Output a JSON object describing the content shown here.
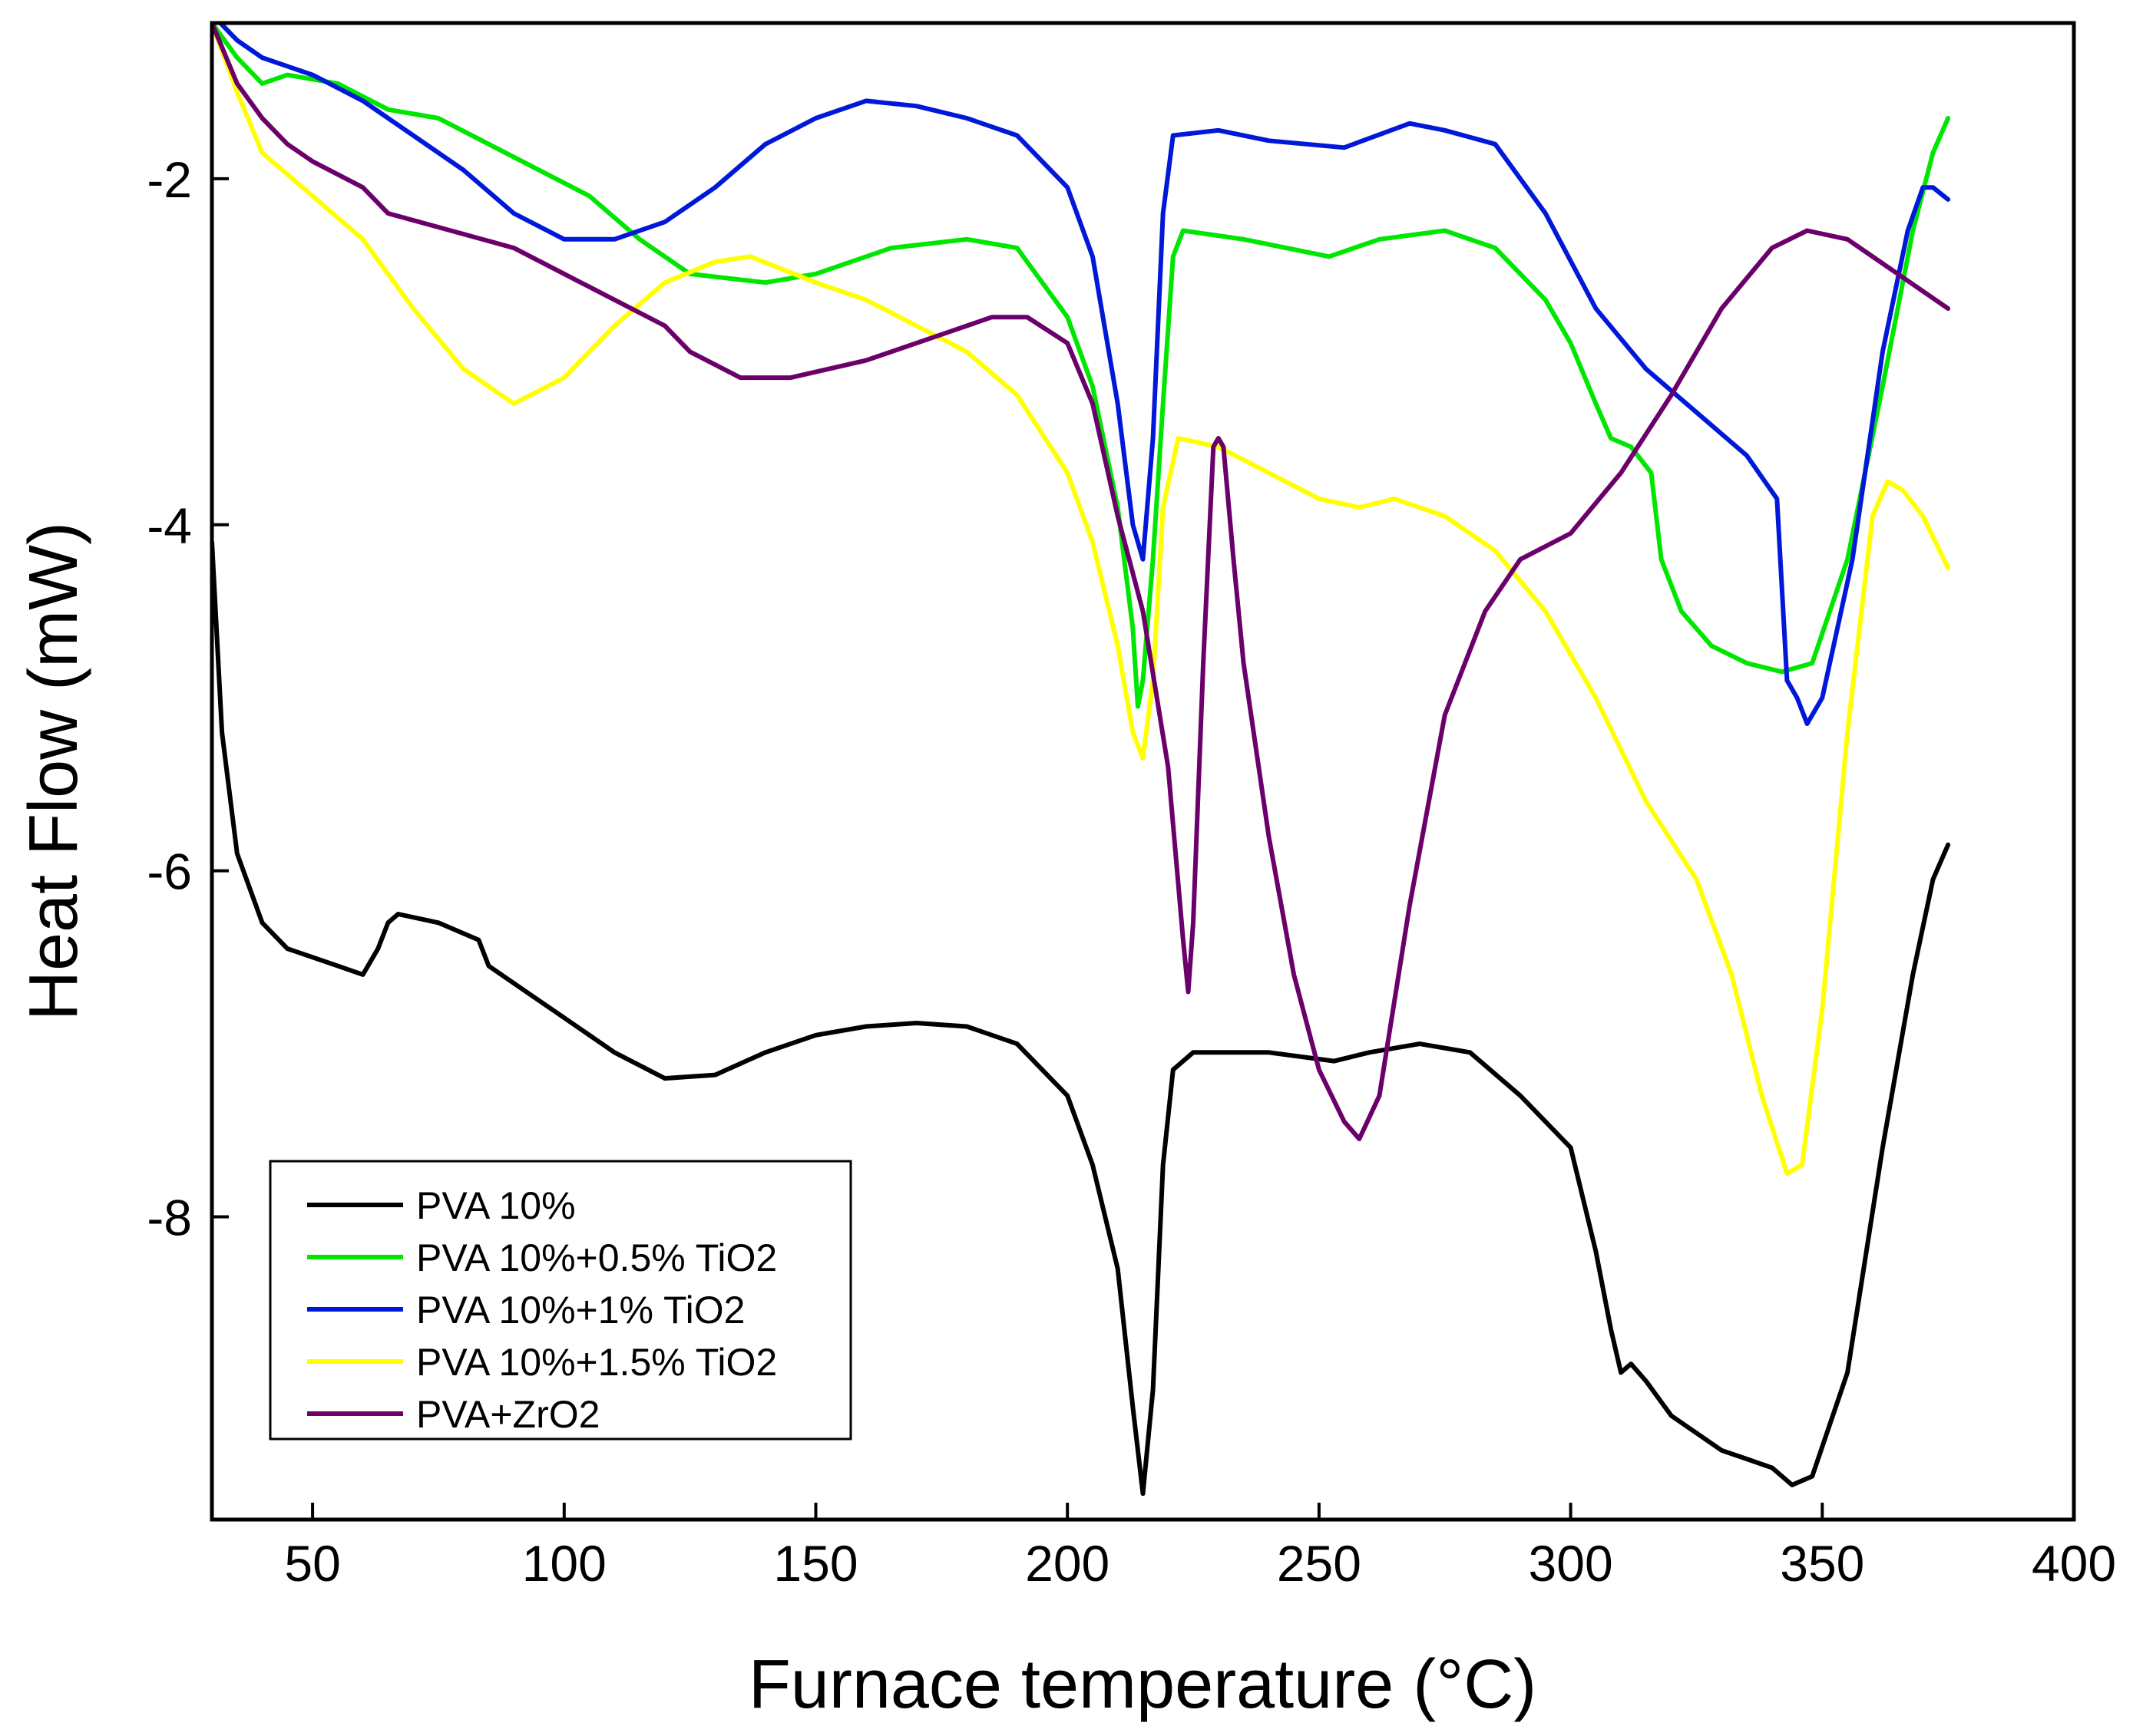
{
  "chart_data": {
    "type": "line",
    "title": "",
    "xlabel": "Furnace temperature (°C)",
    "ylabel": "Heat Flow (mW)",
    "xlim": [
      30,
      400
    ],
    "ylim": [
      -9.75,
      -1.1
    ],
    "xticks": [
      50,
      100,
      150,
      200,
      250,
      300,
      350,
      400
    ],
    "yticks": [
      -2,
      -4,
      -6,
      -8
    ],
    "grid": false,
    "legend_position": "bottom-left",
    "series": [
      {
        "name": "PVA 10%",
        "color": "#000000",
        "points": [
          [
            30,
            -4.1
          ],
          [
            32,
            -5.2
          ],
          [
            35,
            -5.9
          ],
          [
            40,
            -6.3
          ],
          [
            45,
            -6.45
          ],
          [
            50,
            -6.5
          ],
          [
            55,
            -6.55
          ],
          [
            60,
            -6.6
          ],
          [
            63,
            -6.45
          ],
          [
            65,
            -6.3
          ],
          [
            67,
            -6.25
          ],
          [
            75,
            -6.3
          ],
          [
            83,
            -6.4
          ],
          [
            85,
            -6.55
          ],
          [
            90,
            -6.65
          ],
          [
            100,
            -6.85
          ],
          [
            110,
            -7.05
          ],
          [
            120,
            -7.2
          ],
          [
            130,
            -7.18
          ],
          [
            140,
            -7.05
          ],
          [
            150,
            -6.95
          ],
          [
            160,
            -6.9
          ],
          [
            170,
            -6.88
          ],
          [
            180,
            -6.9
          ],
          [
            190,
            -7.0
          ],
          [
            200,
            -7.3
          ],
          [
            205,
            -7.7
          ],
          [
            210,
            -8.3
          ],
          [
            213,
            -9.1
          ],
          [
            215,
            -9.6
          ],
          [
            217,
            -9.0
          ],
          [
            219,
            -7.7
          ],
          [
            221,
            -7.15
          ],
          [
            225,
            -7.05
          ],
          [
            240,
            -7.05
          ],
          [
            253,
            -7.1
          ],
          [
            260,
            -7.05
          ],
          [
            270,
            -7.0
          ],
          [
            280,
            -7.05
          ],
          [
            290,
            -7.3
          ],
          [
            300,
            -7.6
          ],
          [
            305,
            -8.2
          ],
          [
            308,
            -8.65
          ],
          [
            310,
            -8.9
          ],
          [
            312,
            -8.85
          ],
          [
            315,
            -8.95
          ],
          [
            320,
            -9.15
          ],
          [
            330,
            -9.35
          ],
          [
            340,
            -9.45
          ],
          [
            344,
            -9.55
          ],
          [
            348,
            -9.5
          ],
          [
            355,
            -8.9
          ],
          [
            362,
            -7.6
          ],
          [
            368,
            -6.6
          ],
          [
            372,
            -6.05
          ],
          [
            375,
            -5.85
          ]
        ]
      },
      {
        "name": "PVA 10%+0.5% TiO2",
        "color": "#00e600",
        "points": [
          [
            30,
            -1.1
          ],
          [
            35,
            -1.3
          ],
          [
            40,
            -1.45
          ],
          [
            45,
            -1.4
          ],
          [
            55,
            -1.45
          ],
          [
            65,
            -1.6
          ],
          [
            75,
            -1.65
          ],
          [
            85,
            -1.8
          ],
          [
            95,
            -1.95
          ],
          [
            105,
            -2.1
          ],
          [
            115,
            -2.35
          ],
          [
            125,
            -2.55
          ],
          [
            140,
            -2.6
          ],
          [
            150,
            -2.55
          ],
          [
            165,
            -2.4
          ],
          [
            180,
            -2.35
          ],
          [
            190,
            -2.4
          ],
          [
            200,
            -2.8
          ],
          [
            205,
            -3.2
          ],
          [
            210,
            -3.9
          ],
          [
            213,
            -4.6
          ],
          [
            214,
            -5.05
          ],
          [
            215,
            -4.9
          ],
          [
            217,
            -4.2
          ],
          [
            219,
            -3.3
          ],
          [
            221,
            -2.45
          ],
          [
            223,
            -2.3
          ],
          [
            235,
            -2.35
          ],
          [
            252,
            -2.45
          ],
          [
            262,
            -2.35
          ],
          [
            275,
            -2.3
          ],
          [
            285,
            -2.4
          ],
          [
            295,
            -2.7
          ],
          [
            300,
            -2.95
          ],
          [
            305,
            -3.3
          ],
          [
            308,
            -3.5
          ],
          [
            312,
            -3.55
          ],
          [
            316,
            -3.7
          ],
          [
            318,
            -4.2
          ],
          [
            322,
            -4.5
          ],
          [
            328,
            -4.7
          ],
          [
            335,
            -4.8
          ],
          [
            342,
            -4.85
          ],
          [
            348,
            -4.8
          ],
          [
            355,
            -4.2
          ],
          [
            362,
            -3.2
          ],
          [
            368,
            -2.3
          ],
          [
            372,
            -1.85
          ],
          [
            375,
            -1.65
          ]
        ]
      },
      {
        "name": "PVA 10%+1% TiO2",
        "color": "#0018d8",
        "points": [
          [
            30,
            -1.05
          ],
          [
            35,
            -1.2
          ],
          [
            40,
            -1.3
          ],
          [
            50,
            -1.4
          ],
          [
            60,
            -1.55
          ],
          [
            70,
            -1.75
          ],
          [
            80,
            -1.95
          ],
          [
            90,
            -2.2
          ],
          [
            100,
            -2.35
          ],
          [
            110,
            -2.35
          ],
          [
            120,
            -2.25
          ],
          [
            130,
            -2.05
          ],
          [
            140,
            -1.8
          ],
          [
            150,
            -1.65
          ],
          [
            160,
            -1.55
          ],
          [
            170,
            -1.58
          ],
          [
            180,
            -1.65
          ],
          [
            190,
            -1.75
          ],
          [
            200,
            -2.05
          ],
          [
            205,
            -2.45
          ],
          [
            210,
            -3.3
          ],
          [
            213,
            -4.0
          ],
          [
            215,
            -4.2
          ],
          [
            217,
            -3.5
          ],
          [
            219,
            -2.2
          ],
          [
            221,
            -1.75
          ],
          [
            230,
            -1.72
          ],
          [
            240,
            -1.78
          ],
          [
            255,
            -1.82
          ],
          [
            268,
            -1.68
          ],
          [
            275,
            -1.72
          ],
          [
            285,
            -1.8
          ],
          [
            295,
            -2.2
          ],
          [
            305,
            -2.75
          ],
          [
            315,
            -3.1
          ],
          [
            325,
            -3.35
          ],
          [
            335,
            -3.6
          ],
          [
            341,
            -3.85
          ],
          [
            343,
            -4.9
          ],
          [
            345,
            -5.0
          ],
          [
            347,
            -5.15
          ],
          [
            350,
            -5.0
          ],
          [
            356,
            -4.2
          ],
          [
            362,
            -3.0
          ],
          [
            367,
            -2.3
          ],
          [
            370,
            -2.05
          ],
          [
            372,
            -2.05
          ],
          [
            375,
            -2.12
          ]
        ]
      },
      {
        "name": "PVA 10%+1.5% TiO2",
        "color": "#ffff00",
        "points": [
          [
            30,
            -1.1
          ],
          [
            35,
            -1.5
          ],
          [
            40,
            -1.85
          ],
          [
            50,
            -2.1
          ],
          [
            60,
            -2.35
          ],
          [
            70,
            -2.75
          ],
          [
            80,
            -3.1
          ],
          [
            90,
            -3.3
          ],
          [
            100,
            -3.15
          ],
          [
            110,
            -2.85
          ],
          [
            120,
            -2.6
          ],
          [
            130,
            -2.48
          ],
          [
            137,
            -2.45
          ],
          [
            150,
            -2.6
          ],
          [
            160,
            -2.7
          ],
          [
            170,
            -2.85
          ],
          [
            180,
            -3.0
          ],
          [
            190,
            -3.25
          ],
          [
            200,
            -3.7
          ],
          [
            205,
            -4.1
          ],
          [
            210,
            -4.7
          ],
          [
            213,
            -5.2
          ],
          [
            215,
            -5.35
          ],
          [
            217,
            -4.9
          ],
          [
            219,
            -3.9
          ],
          [
            222,
            -3.5
          ],
          [
            230,
            -3.55
          ],
          [
            240,
            -3.7
          ],
          [
            250,
            -3.85
          ],
          [
            258,
            -3.9
          ],
          [
            265,
            -3.85
          ],
          [
            275,
            -3.95
          ],
          [
            285,
            -4.15
          ],
          [
            295,
            -4.5
          ],
          [
            305,
            -5.0
          ],
          [
            315,
            -5.6
          ],
          [
            325,
            -6.05
          ],
          [
            332,
            -6.6
          ],
          [
            338,
            -7.3
          ],
          [
            343,
            -7.75
          ],
          [
            346,
            -7.7
          ],
          [
            350,
            -6.8
          ],
          [
            355,
            -5.2
          ],
          [
            360,
            -3.95
          ],
          [
            363,
            -3.75
          ],
          [
            366,
            -3.8
          ],
          [
            370,
            -3.95
          ],
          [
            375,
            -4.25
          ]
        ]
      },
      {
        "name": "PVA+ZrO2",
        "color": "#6b006b",
        "points": [
          [
            30,
            -1.1
          ],
          [
            35,
            -1.45
          ],
          [
            40,
            -1.65
          ],
          [
            45,
            -1.8
          ],
          [
            50,
            -1.9
          ],
          [
            60,
            -2.05
          ],
          [
            65,
            -2.2
          ],
          [
            75,
            -2.28
          ],
          [
            90,
            -2.4
          ],
          [
            100,
            -2.55
          ],
          [
            110,
            -2.7
          ],
          [
            120,
            -2.85
          ],
          [
            125,
            -3.0
          ],
          [
            135,
            -3.15
          ],
          [
            145,
            -3.15
          ],
          [
            160,
            -3.05
          ],
          [
            175,
            -2.9
          ],
          [
            185,
            -2.8
          ],
          [
            192,
            -2.8
          ],
          [
            200,
            -2.95
          ],
          [
            205,
            -3.3
          ],
          [
            210,
            -3.95
          ],
          [
            215,
            -4.5
          ],
          [
            220,
            -5.4
          ],
          [
            223,
            -6.4
          ],
          [
            224,
            -6.7
          ],
          [
            225,
            -6.3
          ],
          [
            227,
            -4.8
          ],
          [
            229,
            -3.55
          ],
          [
            230,
            -3.5
          ],
          [
            231,
            -3.55
          ],
          [
            233,
            -4.2
          ],
          [
            235,
            -4.8
          ],
          [
            240,
            -5.8
          ],
          [
            245,
            -6.6
          ],
          [
            250,
            -7.15
          ],
          [
            255,
            -7.45
          ],
          [
            258,
            -7.55
          ],
          [
            262,
            -7.3
          ],
          [
            268,
            -6.2
          ],
          [
            275,
            -5.1
          ],
          [
            283,
            -4.5
          ],
          [
            290,
            -4.2
          ],
          [
            300,
            -4.05
          ],
          [
            310,
            -3.7
          ],
          [
            320,
            -3.25
          ],
          [
            330,
            -2.75
          ],
          [
            340,
            -2.4
          ],
          [
            347,
            -2.3
          ],
          [
            355,
            -2.35
          ],
          [
            365,
            -2.55
          ],
          [
            375,
            -2.75
          ]
        ]
      }
    ]
  }
}
